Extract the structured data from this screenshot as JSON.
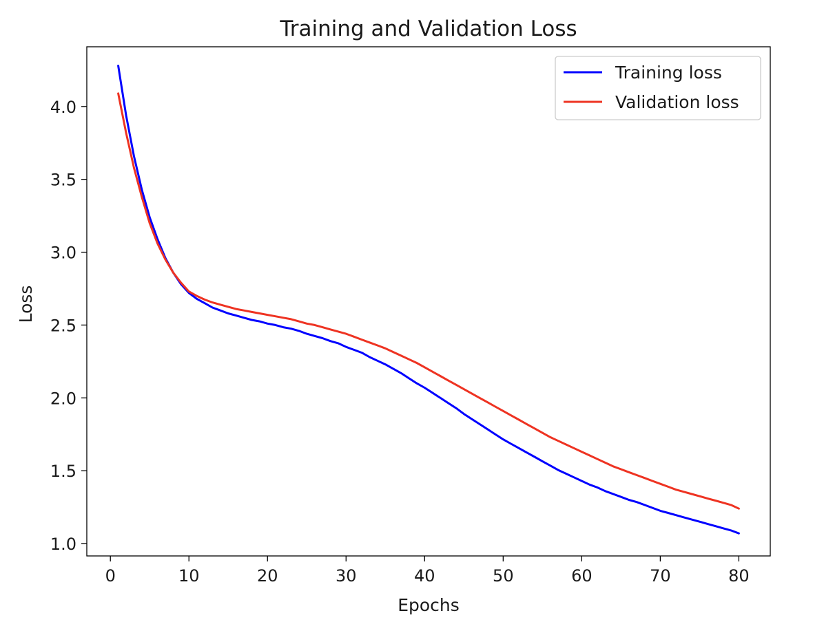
{
  "chart_data": {
    "type": "line",
    "title": "Training and Validation Loss",
    "xlabel": "Epochs",
    "ylabel": "Loss",
    "xlim": [
      -3,
      84
    ],
    "ylim": [
      0.915,
      4.41
    ],
    "xticks": [
      0,
      10,
      20,
      30,
      40,
      50,
      60,
      70,
      80
    ],
    "xtick_labels": [
      "0",
      "10",
      "20",
      "30",
      "40",
      "50",
      "60",
      "70",
      "80"
    ],
    "yticks": [
      1.0,
      1.5,
      2.0,
      2.5,
      3.0,
      3.5,
      4.0
    ],
    "ytick_labels": [
      "1.0",
      "1.5",
      "2.0",
      "2.5",
      "3.0",
      "3.5",
      "4.0"
    ],
    "grid": false,
    "legend_position": "top-right",
    "series": [
      {
        "name": "Training loss",
        "color": "#0000ff",
        "x": [
          1,
          2,
          3,
          4,
          5,
          6,
          7,
          8,
          9,
          10,
          11,
          12,
          13,
          14,
          15,
          16,
          17,
          18,
          19,
          20,
          21,
          22,
          23,
          24,
          25,
          26,
          27,
          28,
          29,
          30,
          31,
          32,
          33,
          34,
          35,
          36,
          37,
          38,
          39,
          40,
          41,
          42,
          43,
          44,
          45,
          46,
          47,
          48,
          49,
          50,
          51,
          52,
          53,
          54,
          55,
          56,
          57,
          58,
          59,
          60,
          61,
          62,
          63,
          64,
          65,
          66,
          67,
          68,
          69,
          70,
          71,
          72,
          73,
          74,
          75,
          76,
          77,
          78,
          79,
          80
        ],
        "y": [
          4.28,
          3.94,
          3.66,
          3.43,
          3.24,
          3.09,
          2.96,
          2.86,
          2.78,
          2.72,
          2.68,
          2.65,
          2.62,
          2.6,
          2.58,
          2.565,
          2.55,
          2.535,
          2.525,
          2.51,
          2.5,
          2.485,
          2.475,
          2.46,
          2.44,
          2.425,
          2.41,
          2.39,
          2.375,
          2.35,
          2.33,
          2.31,
          2.28,
          2.255,
          2.23,
          2.2,
          2.17,
          2.135,
          2.1,
          2.07,
          2.035,
          2.0,
          1.965,
          1.93,
          1.89,
          1.855,
          1.82,
          1.785,
          1.75,
          1.715,
          1.685,
          1.655,
          1.625,
          1.595,
          1.565,
          1.535,
          1.505,
          1.48,
          1.455,
          1.43,
          1.405,
          1.385,
          1.36,
          1.34,
          1.32,
          1.3,
          1.285,
          1.265,
          1.245,
          1.225,
          1.21,
          1.195,
          1.18,
          1.165,
          1.15,
          1.135,
          1.12,
          1.105,
          1.09,
          1.07
        ]
      },
      {
        "name": "Validation loss",
        "color": "#ee3322",
        "x": [
          1,
          2,
          3,
          4,
          5,
          6,
          7,
          8,
          9,
          10,
          11,
          12,
          13,
          14,
          15,
          16,
          17,
          18,
          19,
          20,
          21,
          22,
          23,
          24,
          25,
          26,
          27,
          28,
          29,
          30,
          31,
          32,
          33,
          34,
          35,
          36,
          37,
          38,
          39,
          40,
          41,
          42,
          43,
          44,
          45,
          46,
          47,
          48,
          49,
          50,
          51,
          52,
          53,
          54,
          55,
          56,
          57,
          58,
          59,
          60,
          61,
          62,
          63,
          64,
          65,
          66,
          67,
          68,
          69,
          70,
          71,
          72,
          73,
          74,
          75,
          76,
          77,
          78,
          79,
          80
        ],
        "y": [
          4.09,
          3.82,
          3.58,
          3.38,
          3.2,
          3.06,
          2.95,
          2.86,
          2.79,
          2.73,
          2.7,
          2.675,
          2.655,
          2.64,
          2.625,
          2.61,
          2.6,
          2.59,
          2.58,
          2.57,
          2.56,
          2.55,
          2.54,
          2.525,
          2.51,
          2.5,
          2.485,
          2.47,
          2.455,
          2.44,
          2.42,
          2.4,
          2.38,
          2.36,
          2.34,
          2.315,
          2.29,
          2.265,
          2.24,
          2.21,
          2.18,
          2.15,
          2.12,
          2.09,
          2.06,
          2.03,
          2.0,
          1.97,
          1.94,
          1.91,
          1.88,
          1.85,
          1.82,
          1.79,
          1.76,
          1.73,
          1.705,
          1.68,
          1.655,
          1.63,
          1.605,
          1.58,
          1.555,
          1.53,
          1.51,
          1.49,
          1.47,
          1.45,
          1.43,
          1.41,
          1.39,
          1.37,
          1.355,
          1.34,
          1.325,
          1.31,
          1.295,
          1.28,
          1.265,
          1.24
        ]
      }
    ]
  }
}
